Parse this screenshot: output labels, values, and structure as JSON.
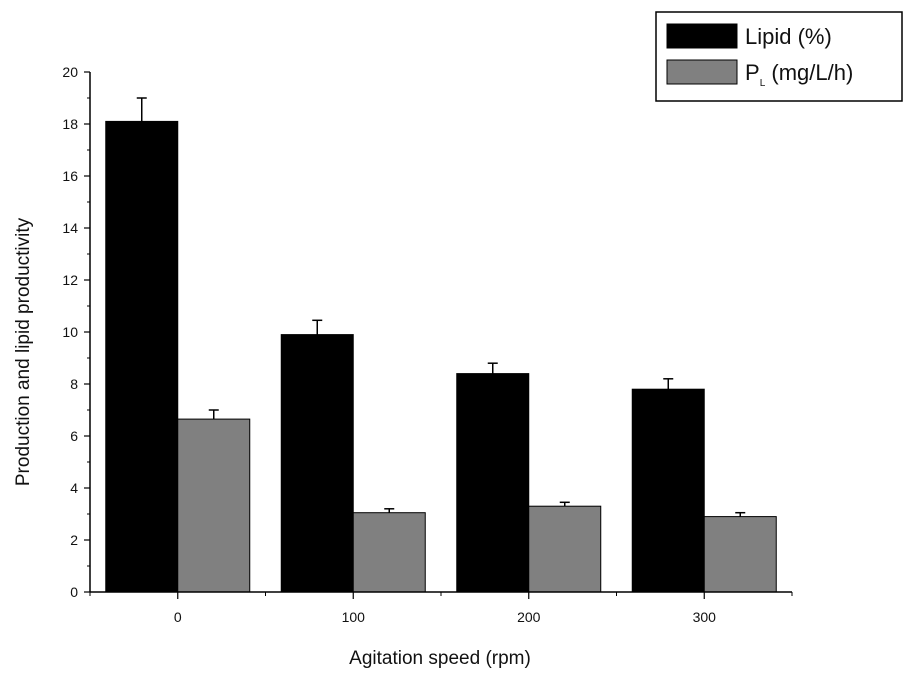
{
  "chart_data": {
    "type": "bar",
    "categories": [
      "0",
      "100",
      "200",
      "300"
    ],
    "series": [
      {
        "name": "Lipid (%)",
        "values": [
          18.1,
          9.9,
          8.4,
          7.8
        ],
        "errors": [
          0.9,
          0.55,
          0.4,
          0.4
        ],
        "color": "#000000"
      },
      {
        "name": "P",
        "subscript": "L",
        "unit": " (mg/L/h)",
        "values": [
          6.65,
          3.05,
          3.3,
          2.9
        ],
        "errors": [
          0.35,
          0.15,
          0.15,
          0.15
        ],
        "color": "#808080"
      }
    ],
    "title": "",
    "xlabel": "Agitation speed (rpm)",
    "ylabel": "Production and lipid productivity",
    "ylim": [
      0,
      20
    ],
    "yticks": [
      "0",
      "2",
      "4",
      "6",
      "8",
      "10",
      "12",
      "14",
      "16",
      "18",
      "20"
    ],
    "grid": false,
    "legend_position": "top-right"
  }
}
